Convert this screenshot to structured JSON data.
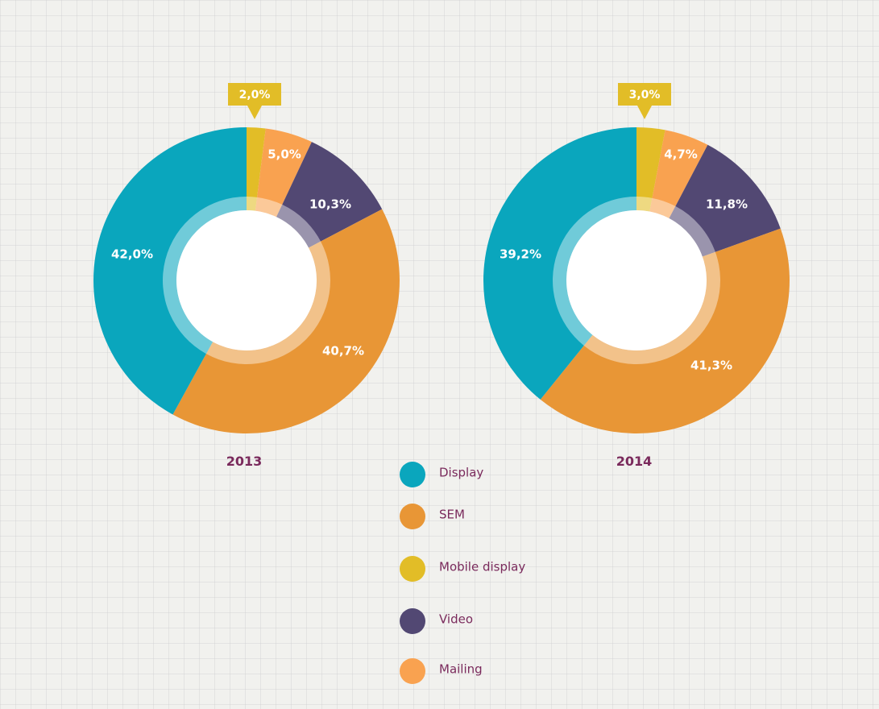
{
  "chart_data": [
    {
      "type": "pie",
      "title": "2013",
      "slices": [
        {
          "name": "Mobile display",
          "value": 2.0,
          "label": "2,0%",
          "color_key": "mobile"
        },
        {
          "name": "Mailing",
          "value": 5.0,
          "label": "5,0%",
          "color_key": "mailing"
        },
        {
          "name": "Video",
          "value": 10.3,
          "label": "10,3%",
          "color_key": "video"
        },
        {
          "name": "SEM",
          "value": 40.7,
          "label": "40,7%",
          "color_key": "sem"
        },
        {
          "name": "Display",
          "value": 42.0,
          "label": "42,0%",
          "color_key": "display"
        }
      ]
    },
    {
      "type": "pie",
      "title": "2014",
      "slices": [
        {
          "name": "Mobile display",
          "value": 3.0,
          "label": "3,0%",
          "color_key": "mobile"
        },
        {
          "name": "Mailing",
          "value": 4.7,
          "label": "4,7%",
          "color_key": "mailing"
        },
        {
          "name": "Video",
          "value": 11.8,
          "label": "11,8%",
          "color_key": "video"
        },
        {
          "name": "SEM",
          "value": 41.3,
          "label": "41,3%",
          "color_key": "sem"
        },
        {
          "name": "Display",
          "value": 39.2,
          "label": "39,2%",
          "color_key": "display"
        }
      ]
    }
  ],
  "colors": {
    "display": "#0aa6bd",
    "sem": "#e89636",
    "mobile": "#e2bd27",
    "video": "#524873",
    "mailing": "#f9a250",
    "text": "#7a2a5c"
  },
  "legend": [
    {
      "label": "Display",
      "color_key": "display"
    },
    {
      "label": "SEM",
      "color_key": "sem"
    },
    {
      "label": "Mobile display",
      "color_key": "mobile"
    },
    {
      "label": "Video",
      "color_key": "video"
    },
    {
      "label": "Mailing",
      "color_key": "mailing"
    }
  ]
}
